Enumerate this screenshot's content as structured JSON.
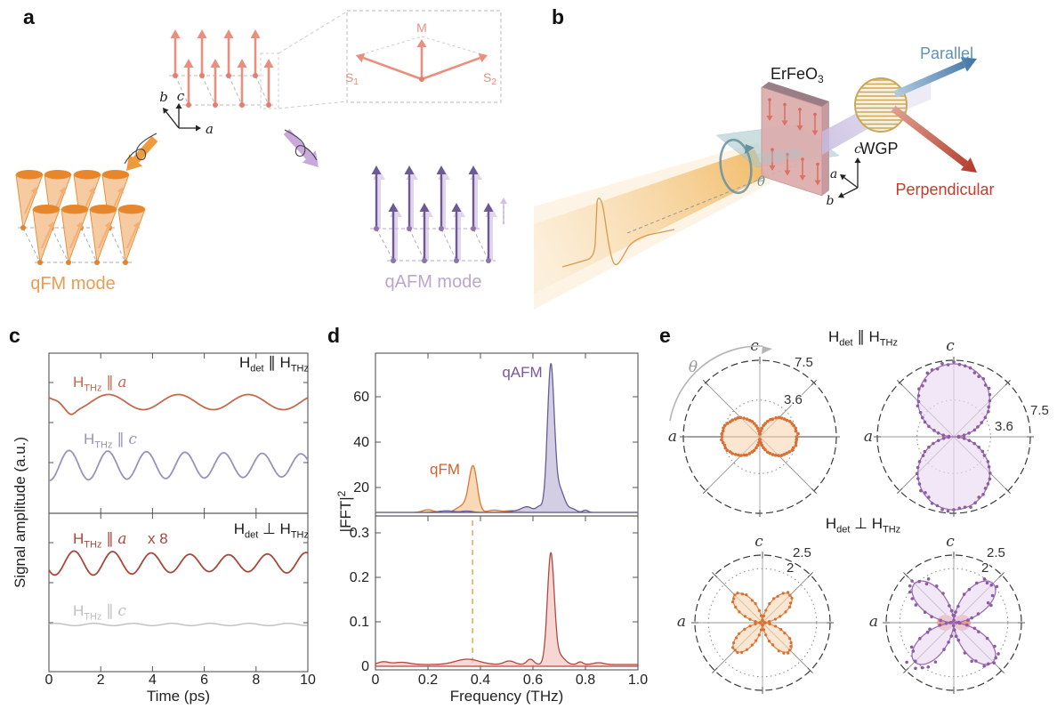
{
  "panel_letters": {
    "a": "a",
    "b": "b",
    "c": "c",
    "d": "d",
    "e": "e"
  },
  "h_labels": {
    "hdet_par": {
      "base": "H",
      "sub": "det",
      "op": "∥",
      "base2": "H",
      "sub2": "THz"
    },
    "hdet_perp": {
      "base": "H",
      "sub": "det",
      "op": "⊥",
      "base2": "H",
      "sub2": "THz"
    },
    "hthz_a": {
      "base": "H",
      "sub": "THz",
      "op": "∥",
      "ital": "a"
    },
    "hthz_c": {
      "base": "H",
      "sub": "THz",
      "op": "∥",
      "ital": "c"
    }
  },
  "panel_a": {
    "inset": {
      "M": "M",
      "S1_base": "S",
      "S1_sub": "1",
      "S2_base": "S",
      "S2_sub": "2"
    },
    "axes": {
      "a": "a",
      "b": "b",
      "c": "c"
    },
    "qfm_label": "qFM mode",
    "qafm_label": "qAFM mode",
    "colors": {
      "spin_salmon": "#EA8F7E",
      "qfm_orange": "#E8862C",
      "qafm_purple": "#6C5A94",
      "qafm_ghost": "#CDB9E0"
    }
  },
  "panel_b": {
    "sample_base": "ErFeO",
    "sample_sub": "3",
    "wgp_label": "WGP",
    "parallel_label": "Parallel",
    "perpendicular_label": "Perpendicular",
    "theta": "θ",
    "axes": {
      "a": "a",
      "b": "b",
      "c": "c"
    },
    "colors": {
      "beam": "#F3C173",
      "parallel": "#5E93BC",
      "perpendicular": "#C43A2D",
      "wgp": "#C9A85C",
      "sample": "#DCABAB",
      "theta_ring": "#66929E"
    }
  },
  "chart_data": [
    {
      "id": "panel_c_time_domain",
      "type": "line",
      "xlabel": "Time (ps)",
      "ylabel": "Signal amplitude (a.u.)",
      "xlim": [
        0,
        10
      ],
      "xticks": [
        0,
        2,
        4,
        6,
        8,
        10
      ],
      "xtick_labels": [
        "0",
        "2",
        "4",
        "6",
        "8",
        "10"
      ],
      "subpanels": [
        {
          "condition": "H_det ∥ H_THz",
          "traces": [
            {
              "name": "H_THz ∥ a",
              "color": "#C4694B",
              "freq_THz": 0.37,
              "description": "slow qFM-frequency oscillation with small initial transient"
            },
            {
              "name": "H_THz ∥ c",
              "color": "#9794BA",
              "freq_THz": 0.67,
              "description": "large qAFM-frequency oscillation"
            }
          ]
        },
        {
          "condition": "H_det ⊥ H_THz",
          "traces": [
            {
              "name": "H_THz ∥ a",
              "scale_note": "x 8",
              "color": "#A8483C",
              "freq_THz": 0.67,
              "description": "qAFM-frequency oscillation, magnified 8x"
            },
            {
              "name": "H_THz ∥ c",
              "color": "#BFBFBF",
              "freq_THz": null,
              "description": "flat, no oscillation"
            }
          ]
        }
      ]
    },
    {
      "id": "panel_d_fft_spectra",
      "type": "area",
      "xlabel": "Frequency (THz)",
      "ylabel_base": "|FFT|",
      "ylabel_sup": "2",
      "xlim": [
        0,
        1.0
      ],
      "xticks": [
        0,
        0.2,
        0.4,
        0.6,
        0.8,
        1.0
      ],
      "xtick_labels": [
        "0",
        "0.2",
        "0.4",
        "0.6",
        "0.8",
        "1.0"
      ],
      "subpanels": [
        {
          "yticks": [
            20,
            40,
            60
          ],
          "ytick_labels": [
            "20",
            "40",
            "60"
          ],
          "ylim": [
            0,
            75
          ],
          "baseline_offset": 9,
          "peaks": [
            {
              "name": "qFM",
              "label_color": "#D2612B",
              "center_THz": 0.37,
              "height": 23,
              "line_color": "#D8793B",
              "fill_color": "#F7D2A9"
            },
            {
              "name": "qAFM",
              "label_color": "#7C56A2",
              "center_THz": 0.67,
              "height": 73,
              "line_color": "#655E97",
              "fill_color": "#C9C2DE"
            }
          ]
        },
        {
          "yticks": [
            0,
            0.1,
            0.2,
            0.3
          ],
          "ytick_labels": [
            "0",
            "0.1",
            "0.2",
            "0.3"
          ],
          "ylim": [
            0,
            0.34
          ],
          "dashed_line_THz": 0.37,
          "dashed_line_color": "#E6AE5E",
          "peaks": [
            {
              "name": "qAFM (perpendicular channel)",
              "center_THz": 0.67,
              "height": 0.25,
              "line_color": "#B1493E",
              "fill_color": "#F4CDC9"
            }
          ]
        }
      ]
    },
    {
      "id": "panel_e_polar_anisotropy",
      "type": "polar",
      "theta_label": "θ",
      "axis_a": "a",
      "axis_c": "c",
      "titles": {
        "parallel": "H_det ∥ H_THz",
        "perpendicular": "H_det ⊥ H_THz"
      },
      "plots": [
        {
          "position": "top-left",
          "condition": "H_det ∥ H_THz",
          "rings": [
            {
              "value": 3.6,
              "label": "3.6"
            },
            {
              "value": 7.5,
              "label": "7.5"
            }
          ],
          "pattern": "two-lobe along a",
          "max_amplitude": 3.7,
          "line_color": "#E08A4A",
          "fill_color": "#F7D8B8",
          "marker_color": "#D86F33"
        },
        {
          "position": "top-right",
          "condition": "H_det ∥ H_THz",
          "rings": [
            {
              "value": 3.6,
              "label": "3.6"
            },
            {
              "value": 7.5,
              "label": "7.5"
            }
          ],
          "pattern": "two-lobe along c",
          "max_amplitude": 7.2,
          "line_color": "#9C6FB5",
          "fill_color": "#EADAF2",
          "marker_color": "#8E5BA6"
        },
        {
          "position": "bottom-left",
          "condition": "H_det ⊥ H_THz",
          "rings": [
            {
              "value": 2,
              "label": "2"
            },
            {
              "value": 2.5,
              "label": "2.5"
            }
          ],
          "pattern": "four-lobe diagonal",
          "max_amplitude": 1.45,
          "line_color": "#E08A4A",
          "fill_color": "#F7D8B8",
          "marker_color": "#D86F33"
        },
        {
          "position": "bottom-right",
          "condition": "H_det ⊥ H_THz",
          "rings": [
            {
              "value": 2,
              "label": "2"
            },
            {
              "value": 2.5,
              "label": "2.5"
            }
          ],
          "pattern": "four-lobe diagonal",
          "max_amplitude": 2.05,
          "line_color": "#9C6FB5",
          "fill_color": "#EADAF2",
          "marker_color": "#8E5BA6",
          "extra_series": {
            "pattern": "two-lobe along a",
            "max_amplitude": 0.62,
            "fill_color": "#EE9A86"
          }
        }
      ]
    }
  ]
}
